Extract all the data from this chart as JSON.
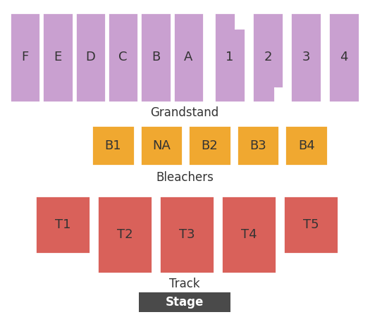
{
  "background_color": "#ffffff",
  "grandstand_color": "#c9a0d0",
  "grandstand_border": "#ffffff",
  "bleacher_color": "#f0a830",
  "bleacher_border": "#ffffff",
  "track_color": "#d9615a",
  "track_border": "#ffffff",
  "stage_color": "#4a4a4a",
  "stage_text_color": "#ffffff",
  "label_color": "#333333",
  "grandstand_sections_left": [
    "F",
    "E",
    "D",
    "C",
    "B",
    "A"
  ],
  "grandstand_sections_right": [
    "1",
    "2",
    "3",
    "4"
  ],
  "bleacher_sections": [
    "B1",
    "NA",
    "B2",
    "B3",
    "B4"
  ],
  "track_sections": [
    "T1",
    "T2",
    "T3",
    "T4",
    "T5"
  ],
  "figsize": [
    5.25,
    4.5
  ],
  "dpi": 100
}
